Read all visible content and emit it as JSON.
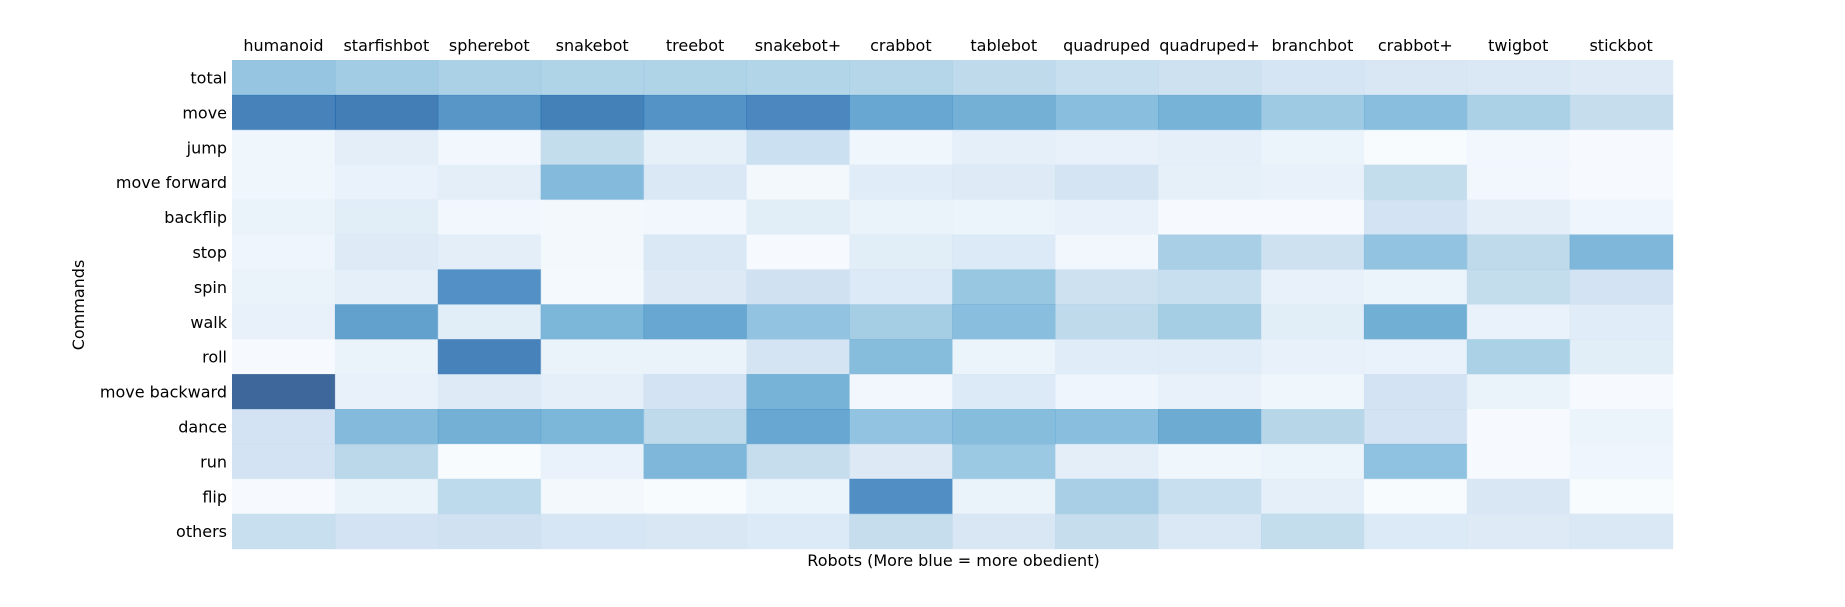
{
  "chart_data": {
    "type": "heatmap",
    "title": "",
    "xlabel": "Robots  (More blue = more obedient)",
    "ylabel": "Commands",
    "x_tick_position": "top",
    "grid": false,
    "legend": "none",
    "colormap": "Blues",
    "value_range": [
      0,
      1
    ],
    "columns": [
      "humanoid",
      "starfishbot",
      "spherebot",
      "snakebot",
      "treebot",
      "snakebot+",
      "crabbot",
      "tablebot",
      "quadruped",
      "quadruped+",
      "branchbot",
      "crabbot+",
      "twigbot",
      "stickbot"
    ],
    "rows": [
      "total",
      "move",
      "jump",
      "move forward",
      "backflip",
      "stop",
      "spin",
      "walk",
      "roll",
      "move backward",
      "dance",
      "run",
      "flip",
      "others"
    ],
    "values": [
      [
        0.47,
        0.43,
        0.4,
        0.39,
        0.39,
        0.38,
        0.37,
        0.33,
        0.29,
        0.27,
        0.23,
        0.21,
        0.2,
        0.17
      ],
      [
        0.82,
        0.84,
        0.72,
        0.83,
        0.74,
        0.79,
        0.64,
        0.59,
        0.51,
        0.58,
        0.44,
        0.51,
        0.4,
        0.3
      ],
      [
        0.06,
        0.14,
        0.05,
        0.31,
        0.12,
        0.28,
        0.06,
        0.13,
        0.11,
        0.13,
        0.08,
        0.01,
        0.05,
        0.02
      ],
      [
        0.06,
        0.1,
        0.14,
        0.53,
        0.2,
        0.04,
        0.16,
        0.17,
        0.24,
        0.12,
        0.11,
        0.31,
        0.05,
        0.02
      ],
      [
        0.09,
        0.15,
        0.05,
        0.04,
        0.05,
        0.15,
        0.09,
        0.08,
        0.11,
        0.02,
        0.02,
        0.25,
        0.14,
        0.07
      ],
      [
        0.07,
        0.17,
        0.14,
        0.04,
        0.2,
        0.02,
        0.15,
        0.19,
        0.05,
        0.41,
        0.27,
        0.48,
        0.33,
        0.55
      ],
      [
        0.09,
        0.13,
        0.75,
        0.03,
        0.18,
        0.26,
        0.19,
        0.46,
        0.27,
        0.29,
        0.11,
        0.08,
        0.31,
        0.25
      ],
      [
        0.11,
        0.67,
        0.15,
        0.56,
        0.64,
        0.48,
        0.42,
        0.51,
        0.33,
        0.42,
        0.15,
        0.6,
        0.1,
        0.16
      ],
      [
        0.02,
        0.09,
        0.82,
        0.09,
        0.09,
        0.24,
        0.52,
        0.08,
        0.16,
        0.16,
        0.11,
        0.1,
        0.4,
        0.15
      ],
      [
        0.95,
        0.11,
        0.17,
        0.13,
        0.25,
        0.58,
        0.05,
        0.19,
        0.07,
        0.11,
        0.06,
        0.25,
        0.09,
        0.02
      ],
      [
        0.25,
        0.53,
        0.59,
        0.56,
        0.33,
        0.64,
        0.48,
        0.52,
        0.51,
        0.62,
        0.36,
        0.25,
        0.02,
        0.08
      ],
      [
        0.25,
        0.35,
        0.01,
        0.1,
        0.55,
        0.3,
        0.18,
        0.45,
        0.14,
        0.06,
        0.08,
        0.49,
        0.02,
        0.07
      ],
      [
        0.02,
        0.09,
        0.34,
        0.04,
        0.01,
        0.08,
        0.76,
        0.09,
        0.41,
        0.29,
        0.13,
        0.01,
        0.21,
        0.01
      ],
      [
        0.29,
        0.25,
        0.26,
        0.22,
        0.21,
        0.19,
        0.3,
        0.21,
        0.3,
        0.2,
        0.31,
        0.19,
        0.17,
        0.2
      ]
    ]
  }
}
